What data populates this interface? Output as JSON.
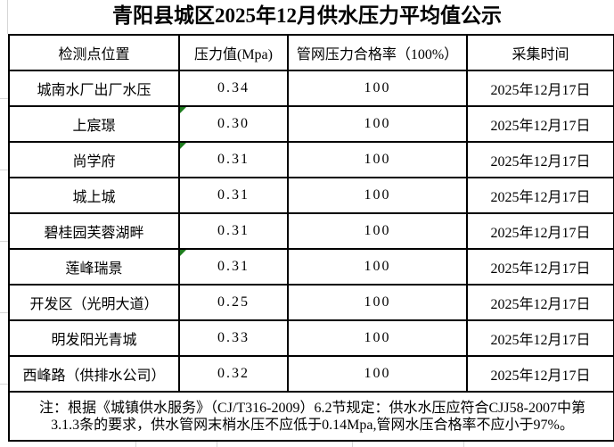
{
  "title": "青阳县城区2025年12月供水压力平均值公示",
  "table": {
    "headers": {
      "location": "检测点位置",
      "pressure": "压力值(Mpa)",
      "pass_rate": "管网压力合格率（100%）",
      "collect_time": "采集时间"
    },
    "rows": [
      {
        "location": "城南水厂出厂水压",
        "pressure": "0.34",
        "pass_rate": "100",
        "collect_date": "2025年12月17日",
        "flag": false
      },
      {
        "location": "上宸璟",
        "pressure": "0.30",
        "pass_rate": "100",
        "collect_date": "2025年12月17日",
        "flag": true
      },
      {
        "location": "尚学府",
        "pressure": "0.31",
        "pass_rate": "100",
        "collect_date": "2025年12月17日",
        "flag": true
      },
      {
        "location": "城上城",
        "pressure": "0.31",
        "pass_rate": "100",
        "collect_date": "2025年12月17日",
        "flag": false
      },
      {
        "location": "碧桂园芙蓉湖畔",
        "pressure": "0.31",
        "pass_rate": "100",
        "collect_date": "2025年12月17日",
        "flag": false
      },
      {
        "location": "莲峰瑞景",
        "pressure": "0.31",
        "pass_rate": "100",
        "collect_date": "2025年12月17日",
        "flag": true
      },
      {
        "location": "开发区（光明大道）",
        "pressure": "0.25",
        "pass_rate": "100",
        "collect_date": "2025年12月17日",
        "flag": false
      },
      {
        "location": "明发阳光青城",
        "pressure": "0.33",
        "pass_rate": "100",
        "collect_date": "2025年12月17日",
        "flag": false
      },
      {
        "location": "西峰路（供排水公司）",
        "pressure": "0.32",
        "pass_rate": "100",
        "collect_date": "2025年12月17日",
        "flag": false
      }
    ],
    "note_line1": "注：根据《城镇供水服务》（CJ/T316-2009）6.2节规定：供水水压应符合CJJ58-2007中第",
    "note_line2": "3.1.3条的要求，供水管网末梢水压不应低于0.14Mpa,管网水压合格率不应小于97%。"
  },
  "colors": {
    "border": "#000000",
    "flag_triangle": "#1e7d1e",
    "gridline": "#d6d6d6",
    "background": "#ffffff",
    "text": "#000000"
  }
}
